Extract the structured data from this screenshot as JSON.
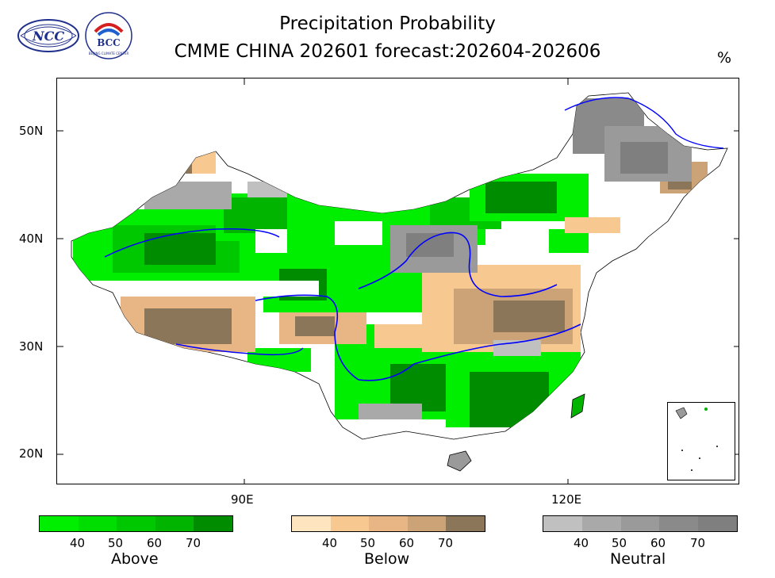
{
  "header": {
    "title_line1": "Precipitation Probability",
    "title_line2": "CMME CHINA 202601 forecast:202604-202606",
    "unit": "%"
  },
  "logos": {
    "ncc": "NCC",
    "bcc": "BCC",
    "bcc_ring": "BEIJING CLIMATE CENTER"
  },
  "axes": {
    "y_labels": [
      "50N",
      "40N",
      "30N",
      "20N"
    ],
    "x_labels": [
      "90E",
      "120E"
    ]
  },
  "legends": [
    {
      "name": "Above",
      "ticks": [
        "40",
        "50",
        "60",
        "70"
      ],
      "colors": [
        "#00ee00",
        "#00dd00",
        "#00c800",
        "#00b400",
        "#008c00"
      ]
    },
    {
      "name": "Below",
      "ticks": [
        "40",
        "50",
        "60",
        "70"
      ],
      "colors": [
        "#ffe4c0",
        "#f8c891",
        "#e8b585",
        "#cba377",
        "#8c765a"
      ]
    },
    {
      "name": "Neutral",
      "ticks": [
        "40",
        "50",
        "60",
        "70"
      ],
      "colors": [
        "#c0c0c0",
        "#a9a9a9",
        "#9a9a9a",
        "#8a8a8a",
        "#7f7f7f"
      ]
    }
  ],
  "colors": {
    "river": "#0000ff",
    "border": "#000000"
  }
}
